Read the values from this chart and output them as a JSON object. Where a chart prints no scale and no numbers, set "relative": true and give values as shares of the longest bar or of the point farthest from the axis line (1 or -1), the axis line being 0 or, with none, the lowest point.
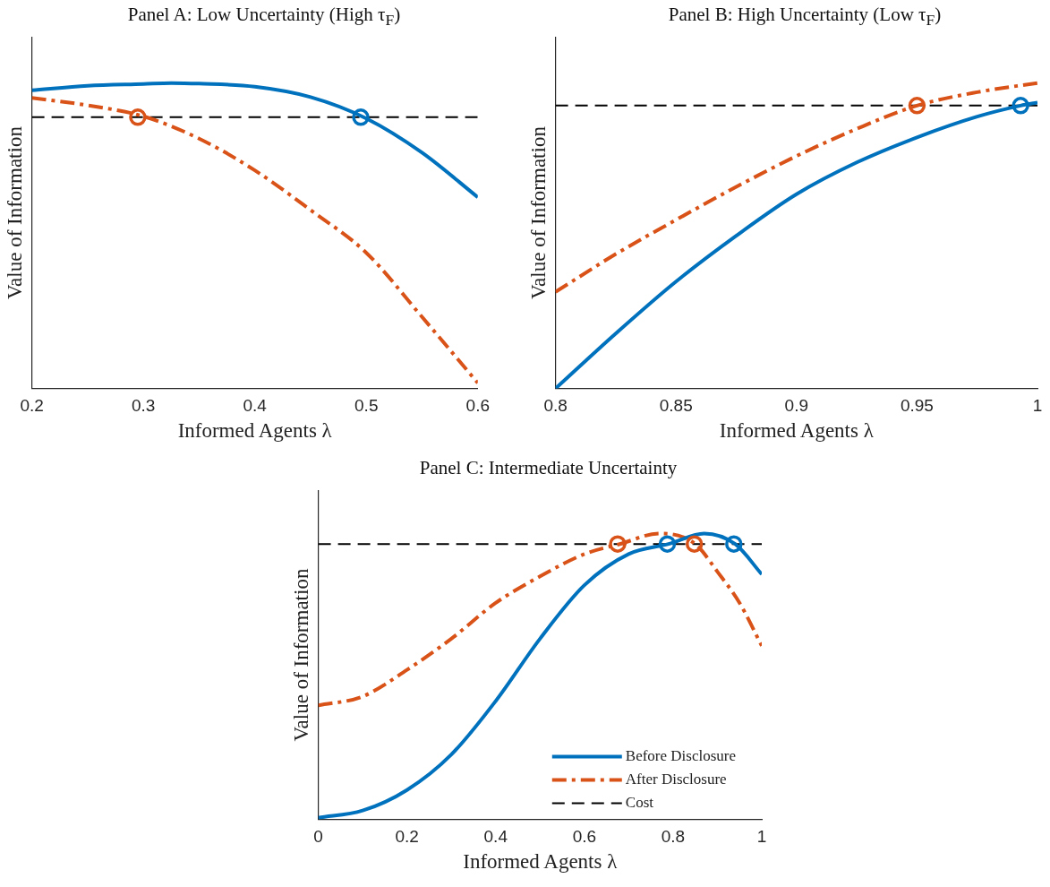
{
  "chart_data": [
    {
      "type": "line",
      "title": "Panel A: Low Uncertainty (High τ$_{F}$)",
      "xlabel": "Informed Agents λ",
      "ylabel": "Value of Information",
      "relative": true,
      "xlim": [
        0.2,
        0.6
      ],
      "xticks": [
        0.2,
        0.3,
        0.4,
        0.5,
        0.6
      ],
      "tick_labels": "x",
      "grid": false,
      "legend": false,
      "marker": "none",
      "series": [
        {
          "type": "line",
          "color": "#0072bd",
          "line_style": "solid",
          "x": [
            0.2,
            0.25,
            0.3,
            0.325,
            0.35,
            0.4,
            0.45,
            0.5,
            0.55,
            0.6
          ],
          "values": [
            0.976,
            0.991,
            0.997,
            1.0,
            0.998,
            0.988,
            0.954,
            0.884,
            0.772,
            0.626
          ]
        },
        {
          "type": "line",
          "color": "#d95319",
          "line_style": "dashed",
          "x": [
            0.2,
            0.25,
            0.3,
            0.35,
            0.4,
            0.45,
            0.5,
            0.55,
            0.6
          ],
          "values": [
            0.951,
            0.927,
            0.891,
            0.818,
            0.714,
            0.584,
            0.444,
            0.234,
            0.018
          ]
        },
        {
          "type": "line",
          "color": "#000000",
          "line_style": "dashed",
          "x": [
            0.2,
            0.6
          ],
          "values": [
            0.888,
            0.888
          ]
        },
        {
          "type": "scatter",
          "color": "#d95319",
          "marker": "circle",
          "x": [
            0.295
          ],
          "values": [
            0.888
          ]
        },
        {
          "type": "scatter",
          "color": "#0072bd",
          "marker": "circle",
          "x": [
            0.495
          ],
          "values": [
            0.888
          ]
        }
      ]
    },
    {
      "type": "line",
      "title": "Panel B: High Uncertainty (Low τ$_{F}$)",
      "xlabel": "Informed Agents λ",
      "ylabel": "Value of Information",
      "relative": true,
      "xlim": [
        0.8,
        1
      ],
      "xticks": [
        0.8,
        0.85,
        0.9,
        0.95,
        1
      ],
      "tick_labels": "x",
      "grid": false,
      "legend": false,
      "marker": "none",
      "series": [
        {
          "type": "line",
          "color": "#0072bd",
          "line_style": "solid",
          "x": [
            0.8,
            0.825,
            0.85,
            0.875,
            0.9,
            0.925,
            0.95,
            0.975,
            0.993,
            1.0
          ],
          "values": [
            0.0,
            0.18,
            0.35,
            0.5,
            0.636,
            0.74,
            0.822,
            0.89,
            0.926,
            0.936
          ]
        },
        {
          "type": "line",
          "color": "#d95319",
          "line_style": "dashed",
          "x": [
            0.8,
            0.825,
            0.85,
            0.875,
            0.9,
            0.925,
            0.95,
            0.975,
            1.0
          ],
          "values": [
            0.316,
            0.44,
            0.552,
            0.66,
            0.761,
            0.85,
            0.926,
            0.97,
            1.0
          ]
        },
        {
          "type": "line",
          "color": "#000000",
          "line_style": "dashed",
          "x": [
            0.8,
            1.0
          ],
          "values": [
            0.926,
            0.926
          ]
        },
        {
          "type": "scatter",
          "color": "#d95319",
          "marker": "circle",
          "x": [
            0.95
          ],
          "values": [
            0.926
          ]
        },
        {
          "type": "scatter",
          "color": "#0072bd",
          "marker": "circle",
          "x": [
            0.993
          ],
          "values": [
            0.926
          ]
        }
      ]
    },
    {
      "type": "line",
      "title": "Panel C: Intermediate Uncertainty",
      "xlabel": "Informed Agents λ",
      "ylabel": "Value of Information",
      "relative": true,
      "xlim": [
        0,
        1
      ],
      "xticks": [
        0,
        0.2,
        0.4,
        0.6,
        0.8,
        1
      ],
      "tick_labels": "x",
      "grid": false,
      "legend": "bottom right",
      "marker": "none",
      "series": [
        {
          "type": "line",
          "name": "Before Disclosure",
          "color": "#0072bd",
          "line_style": "solid",
          "x": [
            0,
            0.1,
            0.2,
            0.3,
            0.4,
            0.5,
            0.6,
            0.7,
            0.79,
            0.87,
            0.94,
            1.0
          ],
          "values": [
            0.006,
            0.031,
            0.103,
            0.227,
            0.414,
            0.632,
            0.819,
            0.928,
            0.963,
            1.0,
            0.963,
            0.857
          ]
        },
        {
          "type": "line",
          "name": "After Disclosure",
          "color": "#d95319",
          "line_style": "dashed",
          "x": [
            0,
            0.1,
            0.2,
            0.3,
            0.4,
            0.5,
            0.6,
            0.68,
            0.77,
            0.85,
            0.9,
            0.95,
            1.0
          ],
          "values": [
            0.399,
            0.43,
            0.523,
            0.632,
            0.757,
            0.85,
            0.928,
            0.963,
            1.0,
            0.963,
            0.866,
            0.757,
            0.607
          ]
        },
        {
          "type": "line",
          "name": "Cost",
          "color": "#000000",
          "line_style": "dashed",
          "x": [
            0,
            1
          ],
          "values": [
            0.963,
            0.963
          ]
        },
        {
          "type": "scatter",
          "color": "#d95319",
          "marker": "circle",
          "x": [
            0.675,
            0.848
          ],
          "values": [
            0.963,
            0.963
          ]
        },
        {
          "type": "scatter",
          "color": "#0072bd",
          "marker": "circle",
          "x": [
            0.787,
            0.937
          ],
          "values": [
            0.963,
            0.963
          ]
        }
      ]
    }
  ]
}
